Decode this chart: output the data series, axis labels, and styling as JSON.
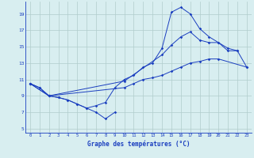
{
  "xlabel": "Graphe des températures (°C)",
  "bg_color": "#d8eef0",
  "line_color": "#1a3ebf",
  "grid_color": "#b0cccc",
  "xlim": [
    -0.5,
    23.5
  ],
  "ylim": [
    4.5,
    20.5
  ],
  "yticks": [
    5,
    7,
    9,
    11,
    13,
    15,
    17,
    19
  ],
  "xticks": [
    0,
    1,
    2,
    3,
    4,
    5,
    6,
    7,
    8,
    9,
    10,
    11,
    12,
    13,
    14,
    15,
    16,
    17,
    18,
    19,
    20,
    21,
    22,
    23
  ],
  "series": [
    {
      "x": [
        0,
        1,
        2,
        3,
        4,
        5,
        6,
        7,
        8,
        9
      ],
      "y": [
        10.5,
        10.0,
        9.0,
        8.8,
        8.5,
        8.0,
        7.5,
        7.0,
        6.2,
        7.0
      ]
    },
    {
      "x": [
        0,
        1,
        2,
        3,
        4,
        5,
        6,
        7,
        8,
        9,
        10,
        11,
        12,
        13,
        14,
        15,
        16,
        17,
        18,
        19,
        20,
        21,
        22
      ],
      "y": [
        10.5,
        10.0,
        9.0,
        8.8,
        8.5,
        8.0,
        7.5,
        7.8,
        8.2,
        10.0,
        11.0,
        11.5,
        12.5,
        13.0,
        14.8,
        19.2,
        19.8,
        19.0,
        17.2,
        16.2,
        15.5,
        14.5,
        14.5
      ]
    },
    {
      "x": [
        0,
        2,
        10,
        14,
        15,
        16,
        17,
        18,
        19,
        20,
        21,
        22,
        23
      ],
      "y": [
        10.5,
        9.0,
        10.8,
        14.0,
        15.2,
        16.2,
        16.8,
        15.8,
        15.5,
        15.5,
        14.8,
        14.5,
        12.5
      ]
    },
    {
      "x": [
        0,
        2,
        10,
        11,
        12,
        13,
        14,
        15,
        16,
        17,
        18,
        19,
        20,
        23
      ],
      "y": [
        10.5,
        9.0,
        10.0,
        10.5,
        11.0,
        11.2,
        11.5,
        12.0,
        12.5,
        13.0,
        13.2,
        13.5,
        13.5,
        12.5
      ]
    }
  ]
}
